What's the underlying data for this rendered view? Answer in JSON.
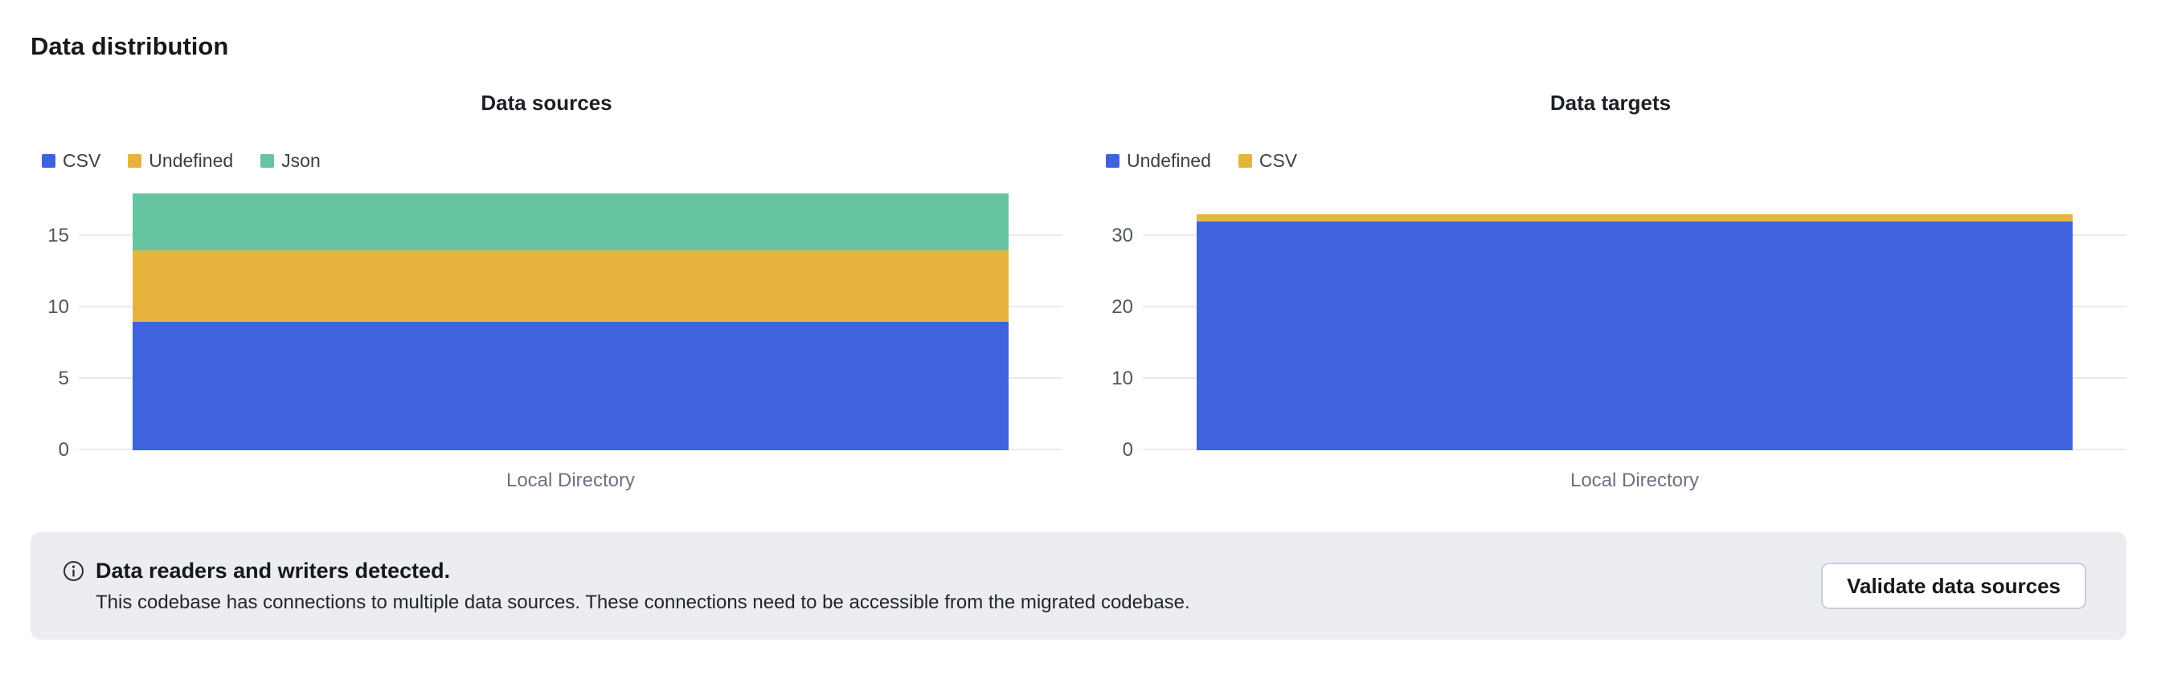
{
  "page": {
    "title": "Data distribution"
  },
  "chart_data": [
    {
      "type": "bar",
      "stacked": true,
      "title": "Data sources",
      "categories": [
        "Local Directory"
      ],
      "series": [
        {
          "name": "CSV",
          "color": "#3e63dd",
          "values": [
            9
          ]
        },
        {
          "name": "Undefined",
          "color": "#e6b43d",
          "values": [
            5
          ]
        },
        {
          "name": "Json",
          "color": "#66c5a0",
          "values": [
            4
          ]
        }
      ],
      "yticks": [
        0,
        5,
        10,
        15
      ],
      "ylim": [
        0,
        18
      ],
      "grid": true,
      "legend_position": "top-left",
      "xlabel": "",
      "ylabel": ""
    },
    {
      "type": "bar",
      "stacked": true,
      "title": "Data targets",
      "categories": [
        "Local Directory"
      ],
      "series": [
        {
          "name": "Undefined",
          "color": "#3e63dd",
          "values": [
            32
          ]
        },
        {
          "name": "CSV",
          "color": "#e6b43d",
          "values": [
            1
          ]
        }
      ],
      "yticks": [
        0,
        10,
        20,
        30
      ],
      "ylim": [
        0,
        33
      ],
      "grid": true,
      "legend_position": "top-left",
      "xlabel": "",
      "ylabel": ""
    }
  ],
  "banner": {
    "icon": "info-circle-icon",
    "title": "Data readers and writers detected.",
    "description": "This codebase has connections to multiple data sources. These connections need to be accessible from the migrated codebase.",
    "button_label": "Validate data sources"
  },
  "colors": {
    "blue": "#3e63dd",
    "yellow": "#e6b43d",
    "green": "#66c5a0",
    "banner_bg": "#ebedf0",
    "gridline": "#e8eaee"
  }
}
